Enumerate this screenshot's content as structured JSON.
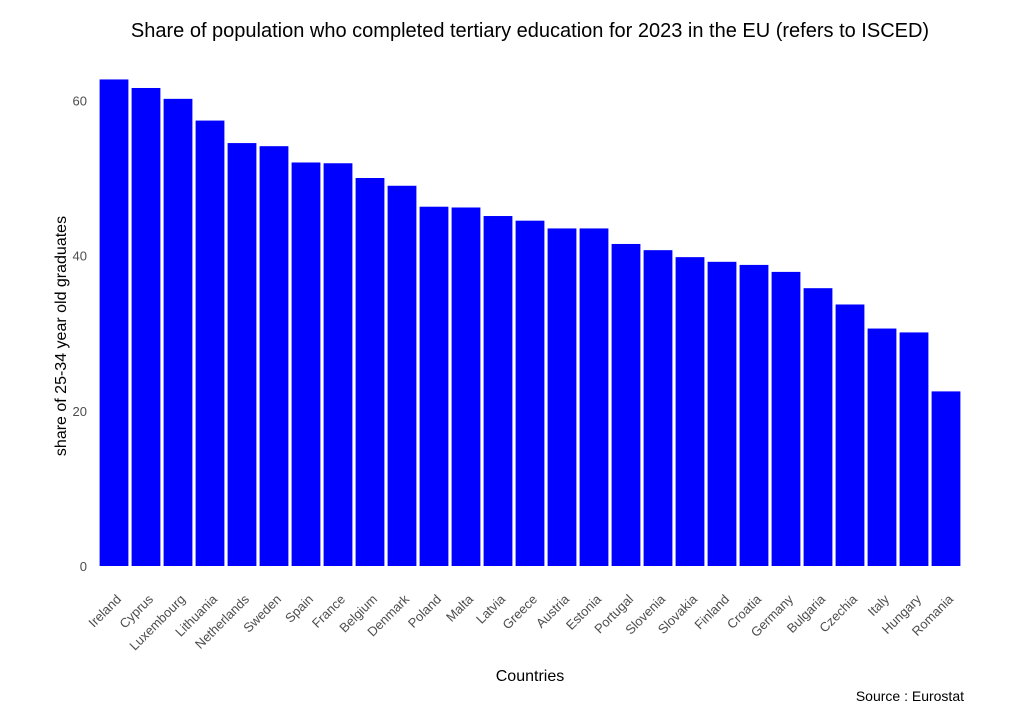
{
  "chart_data": {
    "type": "bar",
    "title": "Share of population who completed tertiary education for 2023 in the EU (refers to ISCED)",
    "xlabel": "Countries",
    "ylabel": "share of 25-34 year old graduates",
    "caption": "Source : Eurostat",
    "ylim": [
      0,
      63
    ],
    "yticks": [
      0,
      20,
      40,
      60
    ],
    "bar_color": "#0000ff",
    "grid": false,
    "categories": [
      "Ireland",
      "Cyprus",
      "Luxembourg",
      "Lithuania",
      "Netherlands",
      "Sweden",
      "Spain",
      "France",
      "Belgium",
      "Denmark",
      "Poland",
      "Malta",
      "Latvia",
      "Greece",
      "Austria",
      "Estonia",
      "Portugal",
      "Slovenia",
      "Slovakia",
      "Finland",
      "Croatia",
      "Germany",
      "Bulgaria",
      "Czechia",
      "Italy",
      "Hungary",
      "Romania"
    ],
    "values": [
      62.7,
      61.6,
      60.2,
      57.4,
      54.5,
      54.1,
      52.0,
      51.9,
      50.0,
      49.0,
      46.3,
      46.2,
      45.1,
      44.5,
      43.5,
      43.5,
      41.5,
      40.7,
      39.8,
      39.2,
      38.8,
      37.9,
      35.8,
      33.7,
      30.6,
      30.1,
      22.5
    ]
  }
}
